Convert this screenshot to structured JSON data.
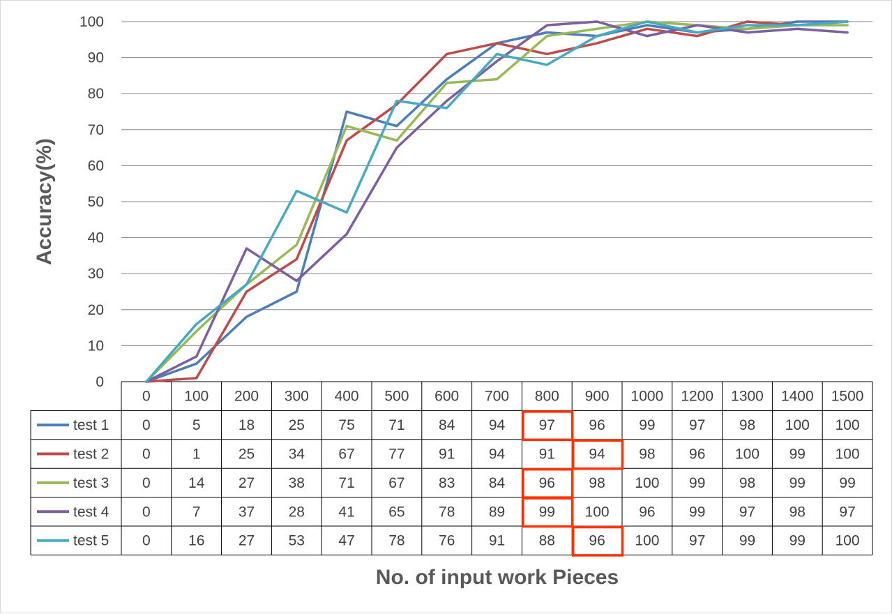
{
  "chart_data": {
    "type": "line",
    "xlabel": "No. of input work Pieces",
    "ylabel": "Accuracy(%)",
    "ylim": [
      0,
      100
    ],
    "y_ticks": [
      "0",
      "10",
      "20",
      "30",
      "40",
      "50",
      "60",
      "70",
      "80",
      "90",
      "100"
    ],
    "categories": [
      "0",
      "100",
      "200",
      "300",
      "400",
      "500",
      "600",
      "700",
      "800",
      "900",
      "1000",
      "1200",
      "1300",
      "1400",
      "1500"
    ],
    "grid": "horizontal",
    "legend": "data table below chart",
    "series": [
      {
        "name": "test 1",
        "color": "#4a7ebb",
        "values": [
          0,
          5,
          18,
          25,
          75,
          71,
          84,
          94,
          97,
          96,
          99,
          97,
          98,
          100,
          100
        ]
      },
      {
        "name": "test 2",
        "color": "#be4b48",
        "values": [
          0,
          1,
          25,
          34,
          67,
          77,
          91,
          94,
          91,
          94,
          98,
          96,
          100,
          99,
          100
        ]
      },
      {
        "name": "test 3",
        "color": "#98b954",
        "values": [
          0,
          14,
          27,
          38,
          71,
          67,
          83,
          84,
          96,
          98,
          100,
          99,
          98,
          99,
          99
        ]
      },
      {
        "name": "test 4",
        "color": "#7d5fa0",
        "values": [
          0,
          7,
          37,
          28,
          41,
          65,
          78,
          89,
          99,
          100,
          96,
          99,
          97,
          98,
          97
        ]
      },
      {
        "name": "test 5",
        "color": "#46aac5",
        "values": [
          0,
          16,
          27,
          53,
          47,
          78,
          76,
          91,
          88,
          96,
          100,
          97,
          99,
          99,
          100
        ]
      }
    ],
    "highlights": [
      {
        "series": "test 1",
        "category": "800"
      },
      {
        "series": "test 2",
        "category": "900"
      },
      {
        "series": "test 3",
        "category": "800"
      },
      {
        "series": "test 4",
        "category": "800"
      },
      {
        "series": "test 5",
        "category": "900"
      }
    ],
    "highlight_color": "#ff3300"
  }
}
